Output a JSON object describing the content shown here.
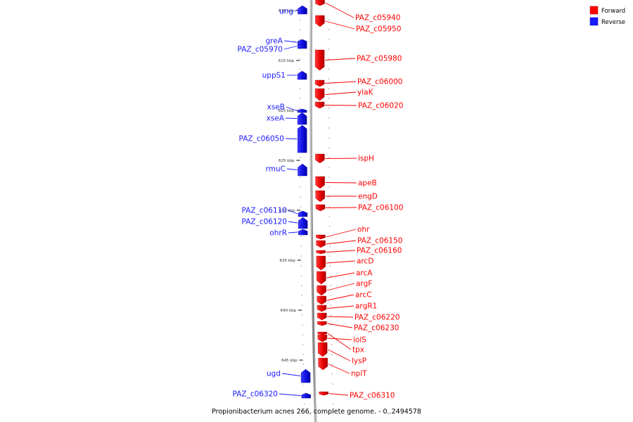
{
  "caption": "Propionibacterium acnes 266, complete genome. - 0..2494578",
  "colors": {
    "forward": "#ff0000",
    "reverse": "#1a1aff",
    "axis": "#888888"
  },
  "legend": [
    {
      "label": "Forward",
      "strand": "forward"
    },
    {
      "label": "Reverse",
      "strand": "reverse"
    }
  ],
  "kbp_ticks": [
    "610 kbp",
    "615 kbp",
    "620 kbp",
    "625 kbp",
    "630 kbp",
    "635 kbp",
    "640 kbp",
    "645 kbp"
  ],
  "genes": [
    {
      "name": "ung",
      "strand": "reverse"
    },
    {
      "name": "greA",
      "strand": "reverse"
    },
    {
      "name": "PAZ_c05970",
      "strand": "reverse"
    },
    {
      "name": "uppS1",
      "strand": "reverse"
    },
    {
      "name": "xseB",
      "strand": "reverse"
    },
    {
      "name": "xseA",
      "strand": "reverse"
    },
    {
      "name": "PAZ_c06050",
      "strand": "reverse"
    },
    {
      "name": "rmuC",
      "strand": "reverse"
    },
    {
      "name": "PAZ_c06110",
      "strand": "reverse"
    },
    {
      "name": "PAZ_c06120",
      "strand": "reverse"
    },
    {
      "name": "ohrR",
      "strand": "reverse"
    },
    {
      "name": "ugd",
      "strand": "reverse"
    },
    {
      "name": "PAZ_c06320",
      "strand": "reverse"
    },
    {
      "name": "PAZ_c05940",
      "strand": "forward"
    },
    {
      "name": "PAZ_c05950",
      "strand": "forward"
    },
    {
      "name": "PAZ_c05980",
      "strand": "forward"
    },
    {
      "name": "PAZ_c06000",
      "strand": "forward"
    },
    {
      "name": "ylaK",
      "strand": "forward"
    },
    {
      "name": "PAZ_c06020",
      "strand": "forward"
    },
    {
      "name": "ispH",
      "strand": "forward"
    },
    {
      "name": "apeB",
      "strand": "forward"
    },
    {
      "name": "engD",
      "strand": "forward"
    },
    {
      "name": "PAZ_c06100",
      "strand": "forward"
    },
    {
      "name": "ohr",
      "strand": "forward"
    },
    {
      "name": "PAZ_c06150",
      "strand": "forward"
    },
    {
      "name": "PAZ_c06160",
      "strand": "forward"
    },
    {
      "name": "arcD",
      "strand": "forward"
    },
    {
      "name": "arcA",
      "strand": "forward"
    },
    {
      "name": "argF",
      "strand": "forward"
    },
    {
      "name": "arcC",
      "strand": "forward"
    },
    {
      "name": "argR1",
      "strand": "forward"
    },
    {
      "name": "PAZ_c06220",
      "strand": "forward"
    },
    {
      "name": "PAZ_c06230",
      "strand": "forward"
    },
    {
      "name": "iolS",
      "strand": "forward"
    },
    {
      "name": "tpx",
      "strand": "forward"
    },
    {
      "name": "lysP",
      "strand": "forward"
    },
    {
      "name": "nplT",
      "strand": "forward"
    },
    {
      "name": "PAZ_c06310",
      "strand": "forward"
    }
  ]
}
